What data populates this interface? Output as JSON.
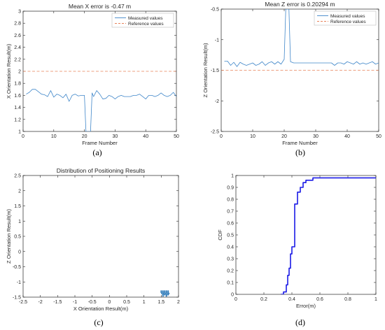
{
  "colors": {
    "measured": "#3f86c9",
    "reference": "#e8825a",
    "scatter": "#2a78b8",
    "cdf": "#1a1ae6",
    "axis": "#262626"
  },
  "chart_data": [
    {
      "type": "line",
      "panel_label": "(a)",
      "title": "Mean X error is -0.47 m",
      "xlabel": "Frame Number",
      "ylabel": "X Orientation Result(m)",
      "xlim": [
        0,
        50
      ],
      "ylim": [
        1,
        3
      ],
      "xticks": [
        0,
        10,
        20,
        30,
        40,
        50
      ],
      "yticks": [
        1,
        1.2,
        1.4,
        1.6,
        1.8,
        2,
        2.2,
        2.4,
        2.6,
        2.8,
        3
      ],
      "grid": false,
      "legend": "top-right",
      "series": [
        {
          "name": "Measured values",
          "style": "solid",
          "x": [
            1,
            2,
            3,
            4,
            5,
            6,
            7,
            8,
            9,
            10,
            11,
            12,
            13,
            14,
            15,
            16,
            17,
            18,
            19,
            20,
            20.5,
            21,
            22,
            22.5,
            23,
            24,
            25,
            26,
            27,
            28,
            29,
            30,
            31,
            32,
            33,
            34,
            35,
            36,
            37,
            38,
            39,
            40,
            41,
            42,
            43,
            44,
            45,
            46,
            47,
            48,
            49,
            50
          ],
          "y": [
            1.62,
            1.65,
            1.7,
            1.7,
            1.66,
            1.62,
            1.61,
            1.58,
            1.68,
            1.57,
            1.62,
            1.6,
            1.56,
            1.62,
            1.5,
            1.6,
            1.62,
            1.59,
            1.6,
            1.6,
            1.0,
            1.0,
            1.0,
            1.64,
            1.58,
            1.68,
            1.62,
            1.54,
            1.55,
            1.6,
            1.58,
            1.54,
            1.58,
            1.6,
            1.58,
            1.58,
            1.58,
            1.6,
            1.6,
            1.62,
            1.58,
            1.54,
            1.6,
            1.6,
            1.58,
            1.6,
            1.64,
            1.6,
            1.58,
            1.6,
            1.65,
            1.58
          ]
        },
        {
          "name": "Reference values",
          "style": "dashed",
          "x": [
            0,
            50
          ],
          "y": [
            2,
            2
          ]
        }
      ]
    },
    {
      "type": "line",
      "panel_label": "(b)",
      "title": "Mean Z error is 0.20294 m",
      "xlabel": "Frame Number",
      "ylabel": "Z Orientation Result(m)",
      "xlim": [
        0,
        50
      ],
      "ylim": [
        -2.5,
        -0.5
      ],
      "xticks": [
        0,
        10,
        20,
        30,
        40,
        50
      ],
      "yticks": [
        -2.5,
        -2,
        -1.5,
        -1,
        -0.5
      ],
      "grid": false,
      "legend": "top-right",
      "series": [
        {
          "name": "Measured values",
          "style": "solid",
          "x": [
            1,
            2,
            3,
            4,
            5,
            6,
            7,
            8,
            9,
            10,
            11,
            12,
            13,
            14,
            15,
            16,
            17,
            18,
            19,
            20,
            20.5,
            21,
            21.5,
            22,
            23,
            24,
            25,
            26,
            27,
            28,
            29,
            30,
            31,
            32,
            33,
            34,
            35,
            36,
            37,
            38,
            39,
            40,
            41,
            42,
            43,
            44,
            45,
            46,
            47,
            48,
            49,
            50
          ],
          "y": [
            -1.35,
            -1.35,
            -1.42,
            -1.37,
            -1.44,
            -1.37,
            -1.4,
            -1.42,
            -1.4,
            -1.38,
            -1.42,
            -1.4,
            -1.36,
            -1.42,
            -1.38,
            -1.36,
            -1.4,
            -1.36,
            -1.4,
            -1.32,
            -0.5,
            -0.5,
            -0.5,
            -1.36,
            -1.38,
            -1.38,
            -1.38,
            -1.38,
            -1.38,
            -1.38,
            -1.38,
            -1.38,
            -1.38,
            -1.38,
            -1.38,
            -1.38,
            -1.38,
            -1.42,
            -1.38,
            -1.38,
            -1.4,
            -1.36,
            -1.38,
            -1.4,
            -1.36,
            -1.4,
            -1.38,
            -1.4,
            -1.38,
            -1.36,
            -1.4,
            -1.38
          ]
        },
        {
          "name": "Reference values",
          "style": "dashed",
          "x": [
            0,
            50
          ],
          "y": [
            -1.5,
            -1.5
          ]
        }
      ]
    },
    {
      "type": "scatter",
      "panel_label": "(c)",
      "title": "Distribution of Positioning Results",
      "xlabel": "X Orientation Result(m)",
      "ylabel": "Z Orientation Result(m)",
      "xlim": [
        -2.5,
        2
      ],
      "ylim": [
        -1.5,
        2.5
      ],
      "xticks": [
        -2.5,
        -2,
        -1.5,
        -1,
        -0.5,
        0,
        0.5,
        1,
        1.5,
        2
      ],
      "yticks": [
        -1.5,
        -1,
        -0.5,
        0,
        0.5,
        1,
        1.5,
        2,
        2.5
      ],
      "grid": false,
      "points": [
        [
          1.5,
          -1.3
        ],
        [
          1.55,
          -1.3
        ],
        [
          1.6,
          -1.3
        ],
        [
          1.65,
          -1.3
        ],
        [
          1.7,
          -1.3
        ],
        [
          1.5,
          -1.34
        ],
        [
          1.55,
          -1.34
        ],
        [
          1.6,
          -1.34
        ],
        [
          1.65,
          -1.34
        ],
        [
          1.7,
          -1.34
        ],
        [
          1.52,
          -1.38
        ],
        [
          1.57,
          -1.38
        ],
        [
          1.62,
          -1.38
        ],
        [
          1.67,
          -1.38
        ],
        [
          1.72,
          -1.38
        ],
        [
          1.55,
          -1.42
        ],
        [
          1.6,
          -1.42
        ],
        [
          1.65,
          -1.42
        ],
        [
          1.7,
          -1.42
        ],
        [
          1.55,
          -1.46
        ],
        [
          1.65,
          -1.46
        ]
      ]
    },
    {
      "type": "line",
      "panel_label": "(d)",
      "title": "",
      "xlabel": "Error(m)",
      "ylabel": "CDF",
      "xlim": [
        0,
        1
      ],
      "ylim": [
        0,
        1
      ],
      "xticks": [
        0,
        0.2,
        0.4,
        0.6,
        0.8,
        1
      ],
      "yticks": [
        0,
        0.1,
        0.2,
        0.3,
        0.4,
        0.5,
        0.6,
        0.7,
        0.8,
        0.9,
        1
      ],
      "grid": false,
      "series": [
        {
          "name": "",
          "style": "stairs",
          "x": [
            0.32,
            0.34,
            0.36,
            0.37,
            0.38,
            0.39,
            0.4,
            0.42,
            0.44,
            0.46,
            0.48,
            0.5,
            0.55,
            1.0
          ],
          "y": [
            0.0,
            0.02,
            0.08,
            0.16,
            0.22,
            0.34,
            0.4,
            0.76,
            0.86,
            0.9,
            0.94,
            0.96,
            0.98,
            0.98
          ]
        }
      ]
    }
  ]
}
